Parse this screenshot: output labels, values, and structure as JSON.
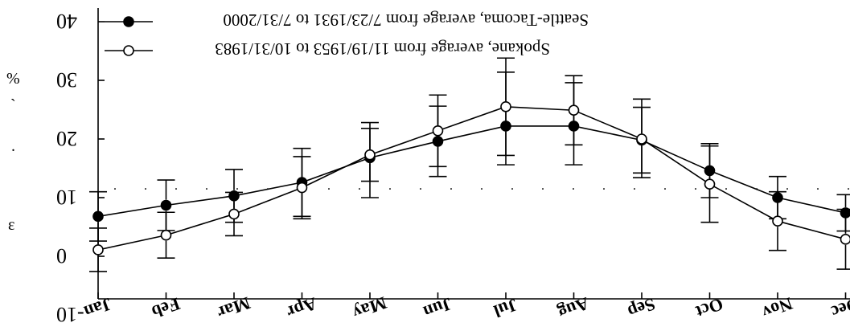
{
  "chart_data": {
    "type": "line",
    "title": "",
    "xlabel": "",
    "ylabel": "",
    "ylim": [
      -10,
      40
    ],
    "yticks": [
      -10,
      0,
      10,
      20,
      30,
      40
    ],
    "reference_line": 11.5,
    "categories": [
      "Jan",
      "Feb",
      "Mar",
      "Apr",
      "May",
      "Jun",
      "Jul",
      "Aug",
      "Sep",
      "Oct",
      "Nov",
      "Dec"
    ],
    "legend_position": "top-left",
    "series": [
      {
        "name": "Seattle-Tacoma, average from 7/23/1931 to 7/31/2000",
        "marker": "filled-circle",
        "color": "#000000",
        "values": [
          6.8,
          8.7,
          10.3,
          12.6,
          16.8,
          19.6,
          22.2,
          22.2,
          19.8,
          14.6,
          10.0,
          7.4
        ],
        "err_high": [
          11.0,
          13.0,
          14.8,
          18.4,
          22.8,
          25.6,
          31.4,
          29.6,
          25.4,
          19.2,
          13.6,
          10.5
        ],
        "err_low": [
          2.6,
          4.4,
          5.8,
          6.8,
          10.0,
          13.6,
          15.6,
          15.6,
          14.2,
          10.0,
          6.4,
          4.3
        ]
      },
      {
        "name": "Spokane, average from 11/19/1953 to 10/31/1983",
        "marker": "open-circle",
        "color": "#000000",
        "values": [
          1.1,
          3.6,
          7.2,
          11.7,
          17.3,
          21.4,
          25.5,
          24.9,
          20.0,
          12.3,
          6.0,
          2.9
        ],
        "err_high": [
          4.8,
          7.5,
          10.9,
          17.0,
          21.8,
          27.5,
          33.8,
          30.8,
          26.8,
          18.8,
          11.0,
          8.0
        ],
        "err_low": [
          -2.6,
          -0.3,
          3.5,
          6.4,
          12.8,
          15.3,
          17.2,
          19.0,
          13.4,
          5.8,
          1.0,
          -2.2
        ]
      }
    ]
  },
  "ylabel_fragments": [
    "ɛ",
    ".",
    "`",
    "%"
  ]
}
